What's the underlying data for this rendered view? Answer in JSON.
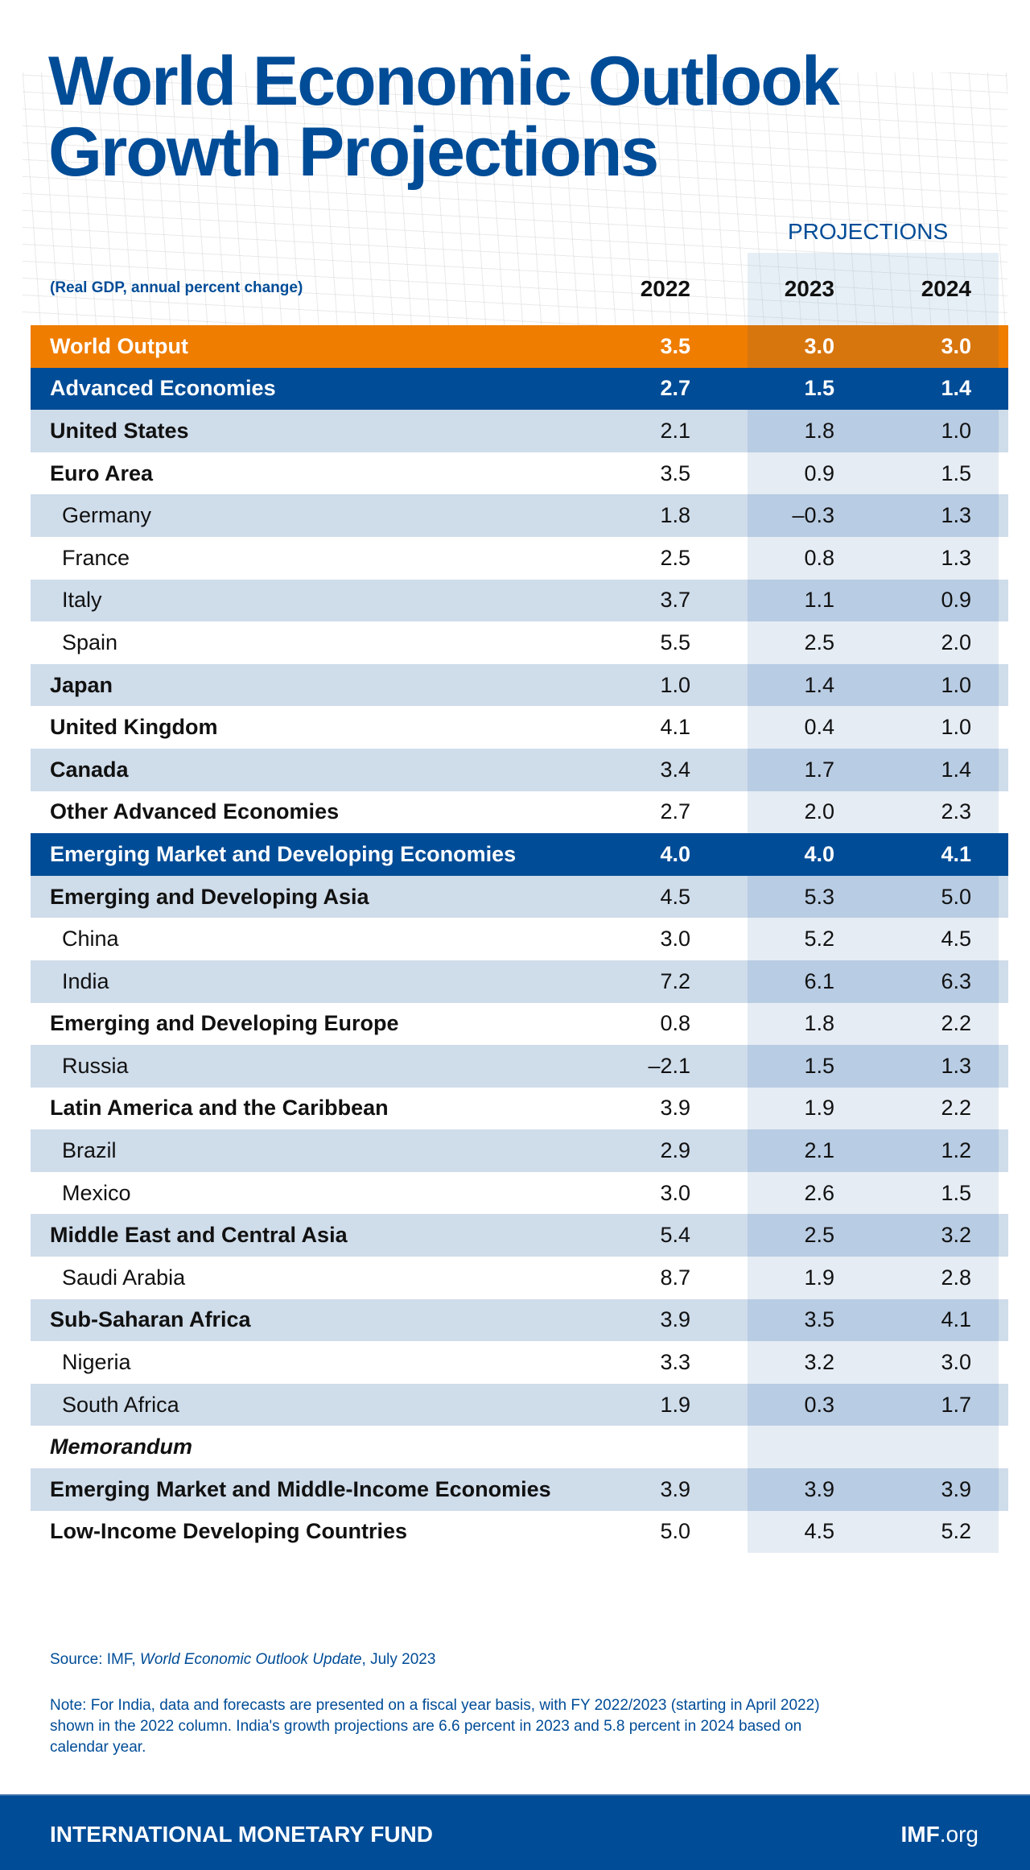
{
  "title": {
    "line1": "World Economic Outlook",
    "line2": "Growth Projections"
  },
  "header": {
    "projections": "PROJECTIONS",
    "subtitle": "(Real GDP, annual percent change)",
    "years": [
      "2022",
      "2023",
      "2024"
    ]
  },
  "rows": [
    {
      "label": "World Output",
      "style": "orange",
      "values": [
        "3.5",
        "3.0",
        "3.0"
      ]
    },
    {
      "label": "Advanced Economies",
      "style": "blue",
      "values": [
        "2.7",
        "1.5",
        "1.4"
      ]
    },
    {
      "label": "United States",
      "style": "bold",
      "values": [
        "2.1",
        "1.8",
        "1.0"
      ]
    },
    {
      "label": "Euro Area",
      "style": "bold",
      "values": [
        "3.5",
        "0.9",
        "1.5"
      ]
    },
    {
      "label": "Germany",
      "style": "indent",
      "values": [
        "1.8",
        "–0.3",
        "1.3"
      ]
    },
    {
      "label": "France",
      "style": "indent",
      "values": [
        "2.5",
        "0.8",
        "1.3"
      ]
    },
    {
      "label": "Italy",
      "style": "indent",
      "values": [
        "3.7",
        "1.1",
        "0.9"
      ]
    },
    {
      "label": "Spain",
      "style": "indent",
      "values": [
        "5.5",
        "2.5",
        "2.0"
      ]
    },
    {
      "label": "Japan",
      "style": "bold",
      "values": [
        "1.0",
        "1.4",
        "1.0"
      ]
    },
    {
      "label": "United Kingdom",
      "style": "bold",
      "values": [
        "4.1",
        "0.4",
        "1.0"
      ]
    },
    {
      "label": "Canada",
      "style": "bold",
      "values": [
        "3.4",
        "1.7",
        "1.4"
      ]
    },
    {
      "label": "Other Advanced Economies",
      "style": "bold",
      "values": [
        "2.7",
        "2.0",
        "2.3"
      ]
    },
    {
      "label": "Emerging Market and Developing Economies",
      "style": "blue",
      "values": [
        "4.0",
        "4.0",
        "4.1"
      ]
    },
    {
      "label": "Emerging and Developing Asia",
      "style": "bold",
      "values": [
        "4.5",
        "5.3",
        "5.0"
      ]
    },
    {
      "label": "China",
      "style": "indent",
      "values": [
        "3.0",
        "5.2",
        "4.5"
      ]
    },
    {
      "label": "India",
      "style": "indent",
      "values": [
        "7.2",
        "6.1",
        "6.3"
      ]
    },
    {
      "label": "Emerging and Developing Europe",
      "style": "bold",
      "values": [
        "0.8",
        "1.8",
        "2.2"
      ]
    },
    {
      "label": "Russia",
      "style": "indent",
      "values": [
        "–2.1",
        "1.5",
        "1.3"
      ]
    },
    {
      "label": "Latin America and the Caribbean",
      "style": "bold",
      "values": [
        "3.9",
        "1.9",
        "2.2"
      ]
    },
    {
      "label": "Brazil",
      "style": "indent",
      "values": [
        "2.9",
        "2.1",
        "1.2"
      ]
    },
    {
      "label": "Mexico",
      "style": "indent",
      "values": [
        "3.0",
        "2.6",
        "1.5"
      ]
    },
    {
      "label": "Middle East and Central Asia",
      "style": "bold",
      "values": [
        "5.4",
        "2.5",
        "3.2"
      ]
    },
    {
      "label": "Saudi Arabia",
      "style": "indent",
      "values": [
        "8.7",
        "1.9",
        "2.8"
      ]
    },
    {
      "label": "Sub-Saharan Africa",
      "style": "bold",
      "values": [
        "3.9",
        "3.5",
        "4.1"
      ]
    },
    {
      "label": "Nigeria",
      "style": "indent",
      "values": [
        "3.3",
        "3.2",
        "3.0"
      ]
    },
    {
      "label": "South Africa",
      "style": "indent",
      "values": [
        "1.9",
        "0.3",
        "1.7"
      ]
    },
    {
      "label": "Memorandum",
      "style": "memo",
      "values": [
        "",
        "",
        ""
      ]
    },
    {
      "label": "Emerging Market and Middle-Income Economies",
      "style": "bold",
      "values": [
        "3.9",
        "3.9",
        "3.9"
      ]
    },
    {
      "label": "Low-Income Developing Countries",
      "style": "bold",
      "values": [
        "5.0",
        "4.5",
        "5.2"
      ]
    }
  ],
  "source": {
    "prefix": "Source: IMF, ",
    "publication": "World Economic Outlook Update",
    "suffix": ", July 2023"
  },
  "note": "Note: For India, data and forecasts are presented on a fiscal year basis, with FY 2022/2023 (starting in April 2022) shown in the 2022 column. India's growth projections are 6.6 percent in 2023 and 5.8 percent in 2024 based on calendar year.",
  "footer": {
    "org": "INTERNATIONAL MONETARY FUND",
    "site_bold": "IMF",
    "site_rest": ".org"
  },
  "colors": {
    "brand_blue": "#004c97",
    "orange": "#ef7d00",
    "row_shade": "#cfdcea"
  }
}
